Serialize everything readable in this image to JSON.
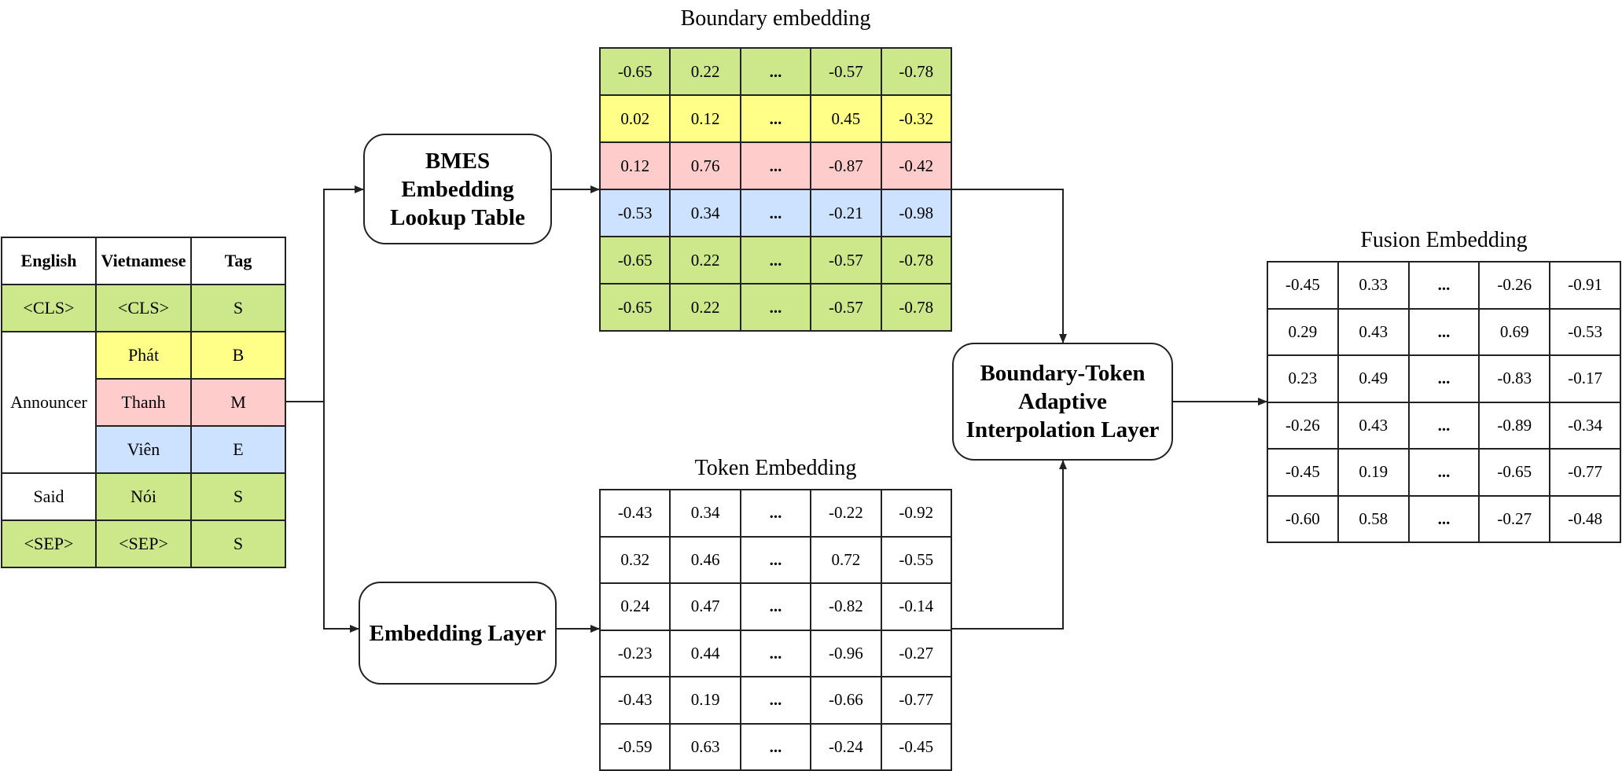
{
  "tag_table": {
    "headers": [
      "English",
      "Vietnamese",
      "Tag"
    ],
    "english": [
      "<CLS>",
      "Announcer",
      "Said",
      "<SEP>"
    ],
    "vietnamese": [
      "<CLS>",
      "Phát",
      "Thanh",
      "Viên",
      "Nói",
      "<SEP>"
    ],
    "tags": [
      "S",
      "B",
      "M",
      "E",
      "S",
      "S"
    ]
  },
  "boxes": {
    "bmes": [
      "BMES",
      "Embedding",
      "Lookup Table"
    ],
    "embedding_layer": "Embedding Layer",
    "fusion_layer": [
      "Boundary-Token",
      "Adaptive",
      "Interpolation Layer"
    ]
  },
  "boundary_embedding": {
    "title": "Boundary embedding",
    "rows": [
      [
        "-0.65",
        "0.22",
        "...",
        "-0.57",
        "-0.78"
      ],
      [
        "0.02",
        "0.12",
        "...",
        "0.45",
        "-0.32"
      ],
      [
        "0.12",
        "0.76",
        "...",
        "-0.87",
        "-0.42"
      ],
      [
        "-0.53",
        "0.34",
        "...",
        "-0.21",
        "-0.98"
      ],
      [
        "-0.65",
        "0.22",
        "...",
        "-0.57",
        "-0.78"
      ],
      [
        "-0.65",
        "0.22",
        "...",
        "-0.57",
        "-0.78"
      ]
    ],
    "row_tags": [
      "S",
      "B",
      "M",
      "E",
      "S",
      "S"
    ]
  },
  "token_embedding": {
    "title": "Token Embedding",
    "rows": [
      [
        "-0.43",
        "0.34",
        "...",
        "-0.22",
        "-0.92"
      ],
      [
        "0.32",
        "0.46",
        "...",
        "0.72",
        "-0.55"
      ],
      [
        "0.24",
        "0.47",
        "...",
        "-0.82",
        "-0.14"
      ],
      [
        "-0.23",
        "0.44",
        "...",
        "-0.96",
        "-0.27"
      ],
      [
        "-0.43",
        "0.19",
        "...",
        "-0.66",
        "-0.77"
      ],
      [
        "-0.59",
        "0.63",
        "...",
        "-0.24",
        "-0.45"
      ]
    ]
  },
  "fusion_embedding": {
    "title": "Fusion Embedding",
    "rows": [
      [
        "-0.45",
        "0.33",
        "...",
        "-0.26",
        "-0.91"
      ],
      [
        "0.29",
        "0.43",
        "...",
        "0.69",
        "-0.53"
      ],
      [
        "0.23",
        "0.49",
        "...",
        "-0.83",
        "-0.17"
      ],
      [
        "-0.26",
        "0.43",
        "...",
        "-0.89",
        "-0.34"
      ],
      [
        "-0.45",
        "0.19",
        "...",
        "-0.65",
        "-0.77"
      ],
      [
        "-0.60",
        "0.58",
        "...",
        "-0.27",
        "-0.48"
      ]
    ]
  },
  "colors": {
    "S": "#cde88a",
    "B": "#ffff88",
    "M": "#ffcccc",
    "E": "#cce2ff",
    "none": "#ffffff",
    "line": "#222222"
  }
}
